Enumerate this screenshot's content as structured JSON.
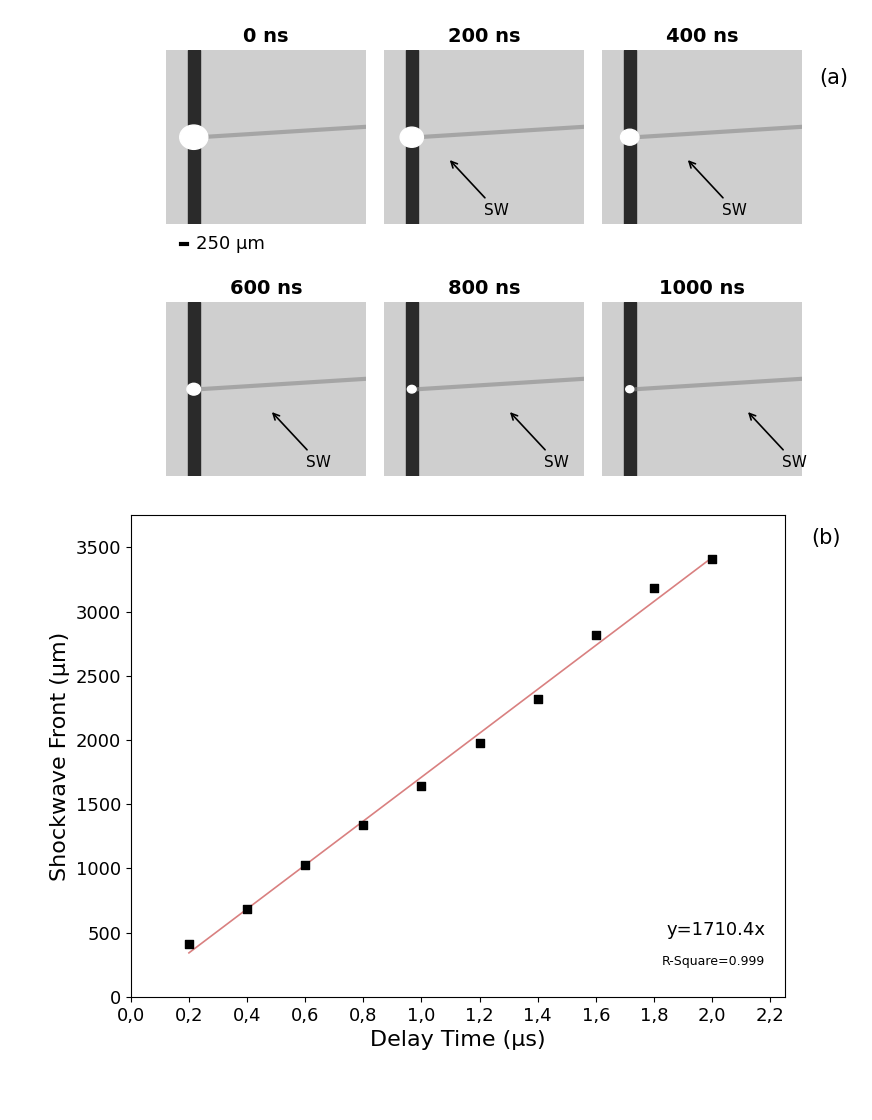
{
  "panel_a": {
    "label": "(a)",
    "scale_bar": "250 μm",
    "arrow_label": "SW",
    "frames": [
      {
        "label": "0 ns",
        "shockwave": false
      },
      {
        "label": "200 ns",
        "shockwave": true
      },
      {
        "label": "400 ns",
        "shockwave": true
      },
      {
        "label": "600 ns",
        "shockwave": true
      },
      {
        "label": "800 ns",
        "shockwave": true
      },
      {
        "label": "1000 ns",
        "shockwave": true
      }
    ]
  },
  "chart_data": {
    "type": "scatter",
    "panel_label": "(b)",
    "x_label": "Delay Time (μs)",
    "y_label": "Shockwave Front (μm)",
    "x": [
      0.2,
      0.4,
      0.6,
      0.8,
      1.0,
      1.2,
      1.4,
      1.6,
      1.8,
      2.0
    ],
    "values": [
      410,
      680,
      1030,
      1340,
      1640,
      1980,
      2320,
      2820,
      3180,
      3410
    ],
    "color": "#000000",
    "marker": "square",
    "fit": {
      "slope": 1710.4,
      "x_range": [
        0.2,
        2.0
      ],
      "color": "#d98080",
      "label": "y=1710.4x",
      "r_square_label": "R-Square=0.999"
    },
    "xlim": [
      0.0,
      2.25
    ],
    "ylim": [
      0,
      3750
    ],
    "xticks": [
      {
        "value": 0.0,
        "label": "0,0"
      },
      {
        "value": 0.2,
        "label": "0,2"
      },
      {
        "value": 0.4,
        "label": "0,4"
      },
      {
        "value": 0.6,
        "label": "0,6"
      },
      {
        "value": 0.8,
        "label": "0,8"
      },
      {
        "value": 1.0,
        "label": "1,0"
      },
      {
        "value": 1.2,
        "label": "1,2"
      },
      {
        "value": 1.4,
        "label": "1,4"
      },
      {
        "value": 1.6,
        "label": "1,6"
      },
      {
        "value": 1.8,
        "label": "1,8"
      },
      {
        "value": 2.0,
        "label": "2,0"
      },
      {
        "value": 2.2,
        "label": "2,2"
      }
    ],
    "yticks": [
      0,
      500,
      1000,
      1500,
      2000,
      2500,
      3000,
      3500
    ],
    "grid": false
  }
}
